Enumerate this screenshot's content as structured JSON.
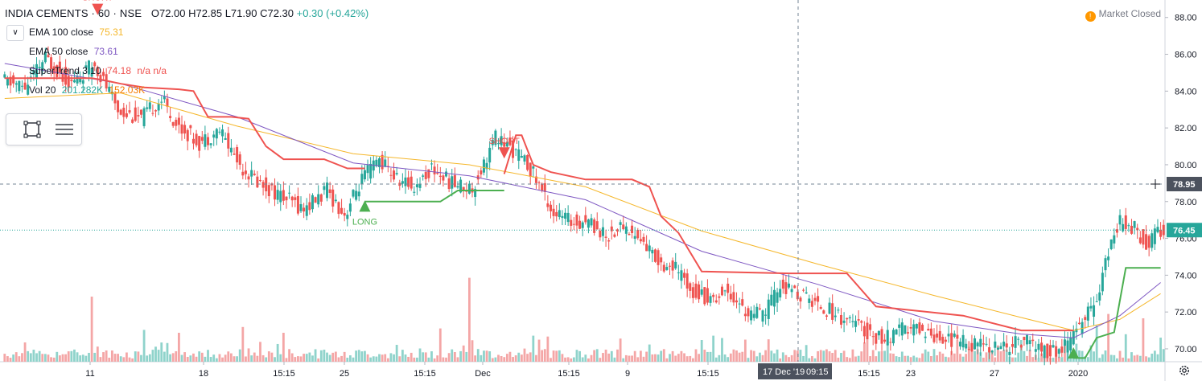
{
  "header": {
    "symbol": "INDIA CEMENTS · 60 · NSE",
    "open": "O72.00",
    "high": "H72.85",
    "low": "L71.90",
    "close": "C72.30",
    "change": "+0.30 (+0.42%)"
  },
  "indicators": [
    {
      "label": "EMA 100 close",
      "value": "75.31",
      "value2": "",
      "color": "#f5b72b"
    },
    {
      "label": "EMA 50 close",
      "value": "73.61",
      "value2": "",
      "color": "#7e57c2"
    },
    {
      "label": "SuperTrend 3 10",
      "value": "74.18",
      "value2": "n/a  n/a",
      "color": "#ef5350"
    },
    {
      "label": "Vol 20",
      "value": "201.282K",
      "value2": "152.03K",
      "color": "#26a69a"
    }
  ],
  "market_status": "Market Closed",
  "colors": {
    "up": "#26a69a",
    "down": "#ef5350",
    "ema100": "#f5b72b",
    "ema50": "#7e57c2",
    "st_red": "#ef5350",
    "st_green": "#4caf50",
    "vol_up": "#8fd3cb",
    "vol_down": "#f4a6a6"
  },
  "icons": [
    "collapse-chevron-icon",
    "select-rectangle-icon",
    "menu-lines-icon",
    "market-closed-dot-icon",
    "settings-gear-icon"
  ],
  "chart_data": {
    "type": "candlestick",
    "y_axis": {
      "ticks": [
        "88.00",
        "86.00",
        "84.00",
        "82.00",
        "80.00",
        "78.00",
        "76.00",
        "74.00",
        "72.00",
        "70.00"
      ],
      "range": [
        69.3,
        88.6
      ]
    },
    "x_axis": {
      "ticks": [
        "11",
        "18",
        "15:15",
        "25",
        "15:15",
        "Dec",
        "15:15",
        "9",
        "15:15",
        "15:15",
        "23",
        "27",
        "2020"
      ]
    },
    "crosshair": {
      "time_label": "17 Dec '19",
      "time_extra": "09:15",
      "price_label": "78.95"
    },
    "last_price_label": "76.45",
    "price_path": [
      [
        0,
        84.6
      ],
      [
        8,
        84.2
      ],
      [
        15,
        85.8
      ],
      [
        24,
        84.4
      ],
      [
        32,
        85.5
      ],
      [
        40,
        83.0
      ],
      [
        48,
        82.5
      ],
      [
        55,
        83.6
      ],
      [
        60,
        82.2
      ],
      [
        68,
        81.2
      ],
      [
        75,
        81.9
      ],
      [
        82,
        80.0
      ],
      [
        88,
        79.1
      ],
      [
        96,
        78.3
      ],
      [
        104,
        77.6
      ],
      [
        112,
        78.6
      ],
      [
        118,
        77.3
      ],
      [
        124,
        79.2
      ],
      [
        130,
        80.3
      ],
      [
        136,
        79.2
      ],
      [
        142,
        78.8
      ],
      [
        148,
        79.8
      ],
      [
        155,
        79.0
      ],
      [
        162,
        78.7
      ],
      [
        170,
        81.5
      ],
      [
        176,
        80.8
      ],
      [
        182,
        79.8
      ],
      [
        190,
        77.4
      ],
      [
        196,
        76.9
      ],
      [
        202,
        77.0
      ],
      [
        208,
        76.1
      ],
      [
        214,
        76.7
      ],
      [
        220,
        75.9
      ],
      [
        226,
        74.8
      ],
      [
        232,
        74.3
      ],
      [
        238,
        73.2
      ],
      [
        244,
        72.7
      ],
      [
        250,
        73.2
      ],
      [
        256,
        72.0
      ],
      [
        262,
        71.8
      ],
      [
        268,
        73.4
      ],
      [
        274,
        73.0
      ],
      [
        280,
        72.5
      ],
      [
        286,
        72.0
      ],
      [
        292,
        71.5
      ],
      [
        298,
        70.9
      ],
      [
        304,
        70.5
      ],
      [
        310,
        71.0
      ],
      [
        316,
        71.1
      ],
      [
        322,
        70.7
      ],
      [
        330,
        70.4
      ],
      [
        338,
        70.2
      ],
      [
        346,
        70.1
      ],
      [
        352,
        70.5
      ],
      [
        358,
        69.9
      ],
      [
        364,
        69.8
      ],
      [
        368,
        70.5
      ],
      [
        372,
        71.5
      ],
      [
        376,
        72.4
      ],
      [
        380,
        74.5
      ],
      [
        383,
        76.5
      ],
      [
        386,
        77.0
      ],
      [
        390,
        76.6
      ],
      [
        394,
        75.7
      ],
      [
        398,
        76.45
      ]
    ],
    "ema50_path": [
      [
        0,
        85.5
      ],
      [
        40,
        84.4
      ],
      [
        80,
        82.6
      ],
      [
        120,
        80.1
      ],
      [
        160,
        79.4
      ],
      [
        200,
        78.1
      ],
      [
        240,
        75.3
      ],
      [
        280,
        73.5
      ],
      [
        320,
        71.5
      ],
      [
        350,
        70.8
      ],
      [
        368,
        70.6
      ],
      [
        384,
        71.8
      ],
      [
        398,
        73.6
      ]
    ],
    "ema100_path": [
      [
        0,
        83.6
      ],
      [
        40,
        83.9
      ],
      [
        80,
        82.1
      ],
      [
        120,
        80.6
      ],
      [
        160,
        80.0
      ],
      [
        200,
        78.8
      ],
      [
        240,
        76.4
      ],
      [
        280,
        74.6
      ],
      [
        320,
        72.9
      ],
      [
        350,
        71.7
      ],
      [
        368,
        71.0
      ],
      [
        384,
        71.6
      ],
      [
        398,
        73.0
      ]
    ],
    "supertrend_red_path": [
      [
        0,
        84.7
      ],
      [
        8,
        84.7
      ],
      [
        16,
        84.7
      ],
      [
        26,
        84.7
      ],
      [
        30,
        84.7
      ],
      [
        34,
        84.6
      ],
      [
        40,
        84.4
      ],
      [
        48,
        84.2
      ],
      [
        60,
        84.1
      ],
      [
        65,
        84.0
      ],
      [
        70,
        82.6
      ],
      [
        78,
        82.6
      ],
      [
        84,
        82.5
      ],
      [
        90,
        81.0
      ],
      [
        96,
        80.3
      ],
      [
        110,
        80.3
      ],
      [
        118,
        79.8
      ],
      [
        124,
        79.8
      ]
    ],
    "supertrend_green_path": [
      [
        124,
        78.0
      ],
      [
        150,
        78.0
      ],
      [
        156,
        78.6
      ],
      [
        172,
        78.6
      ]
    ],
    "supertrend_red_path2": [
      [
        172,
        79.5
      ],
      [
        176,
        81.6
      ],
      [
        178,
        81.6
      ],
      [
        182,
        80.0
      ],
      [
        188,
        79.6
      ],
      [
        200,
        79.2
      ],
      [
        216,
        79.2
      ],
      [
        222,
        78.8
      ],
      [
        226,
        77.2
      ],
      [
        232,
        76.3
      ],
      [
        240,
        74.2
      ],
      [
        270,
        74.1
      ],
      [
        290,
        74.1
      ],
      [
        300,
        72.3
      ],
      [
        330,
        71.8
      ],
      [
        350,
        71.0
      ],
      [
        368,
        71.0
      ]
    ],
    "supertrend_green_path2": [
      [
        368,
        69.5
      ],
      [
        372,
        69.5
      ],
      [
        376,
        70.6
      ],
      [
        382,
        70.9
      ],
      [
        386,
        74.4
      ],
      [
        390,
        74.4
      ],
      [
        398,
        74.4
      ]
    ],
    "signals": [
      {
        "label": "SHORT",
        "type": "short",
        "x": 32,
        "price": 88.4
      },
      {
        "label": "LONG",
        "type": "long",
        "x": 124,
        "price": 77.8
      },
      {
        "label": "SHORT",
        "type": "short",
        "x": 172,
        "price": 80.6
      }
    ]
  }
}
